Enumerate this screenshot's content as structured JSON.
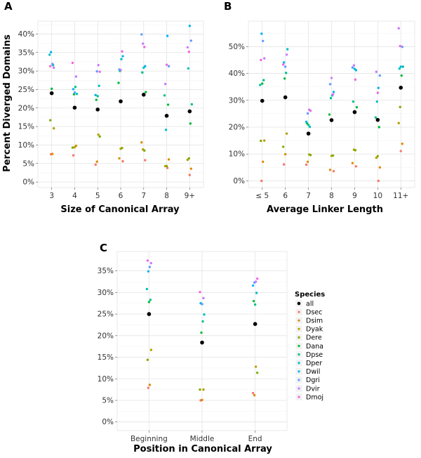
{
  "species": {
    "title": "Species",
    "names": [
      "all",
      "Dsec",
      "Dsim",
      "Dyak",
      "Dere",
      "Dana",
      "Dpse",
      "Dper",
      "Dwil",
      "Dgri",
      "Dvir",
      "Dmoj"
    ],
    "colors": [
      "#000000",
      "#F8766D",
      "#DE8C00",
      "#B79F00",
      "#7CAE00",
      "#00BA38",
      "#00C08B",
      "#00BFC4",
      "#00B4F0",
      "#619CFF",
      "#C77CFF",
      "#F564E3"
    ]
  },
  "chart_data": [
    {
      "type": "scatter",
      "panel": "A",
      "xlabel": "Size of Canonical Array",
      "ylabel": "Percent Diverged Domains",
      "categories": [
        "3",
        "4",
        "5",
        "6",
        "7",
        "8",
        "9+"
      ],
      "ylim": [
        -1.5,
        43.5
      ],
      "yticks": [
        0,
        5,
        10,
        15,
        20,
        25,
        30,
        35,
        40
      ],
      "ytick_labels": [
        "0%",
        "5%",
        "10%",
        "15%",
        "20%",
        "25%",
        "30%",
        "35%",
        "40%"
      ],
      "series": [
        {
          "name": "all",
          "values": [
            24.0,
            20.1,
            19.6,
            21.8,
            23.6,
            17.9,
            19.1
          ]
        },
        {
          "name": "Dsec",
          "values": [
            7.5,
            7.2,
            4.7,
            5.6,
            5.9,
            3.8,
            1.9
          ]
        },
        {
          "name": "Dsim",
          "values": [
            7.6,
            9.4,
            5.5,
            6.4,
            10.7,
            6.1,
            3.6
          ]
        },
        {
          "name": "Dyak",
          "values": [
            14.5,
            9.8,
            12.8,
            9.0,
            8.8,
            4.3,
            6.0
          ]
        },
        {
          "name": "Dere",
          "values": [
            16.7,
            9.3,
            12.3,
            9.2,
            8.5,
            4.3,
            6.4
          ]
        },
        {
          "name": "Dana",
          "values": [
            25.2,
            23.7,
            22.2,
            26.8,
            24.3,
            20.9,
            15.8
          ]
        },
        {
          "name": "Dpse",
          "values": [
            31.6,
            25.7,
            23.2,
            30.0,
            29.6,
            23.4,
            21.0
          ]
        },
        {
          "name": "Dper",
          "values": [
            34.4,
            23.8,
            26.0,
            33.2,
            30.9,
            14.1,
            30.7
          ]
        },
        {
          "name": "Dwil",
          "values": [
            35.1,
            25.1,
            23.5,
            34.0,
            31.3,
            39.5,
            42.2
          ]
        },
        {
          "name": "Dgri",
          "values": [
            31.9,
            24.2,
            29.9,
            30.4,
            39.9,
            31.3,
            38.2
          ]
        },
        {
          "name": "Dvir",
          "values": [
            30.9,
            28.5,
            31.6,
            30.3,
            37.4,
            26.5,
            36.4
          ]
        },
        {
          "name": "Dmoj",
          "values": [
            31.3,
            32.2,
            29.8,
            35.3,
            36.5,
            31.7,
            35.2
          ]
        }
      ]
    },
    {
      "type": "scatter",
      "panel": "B",
      "xlabel": "Average Linker Length",
      "ylabel": "",
      "categories": [
        "≤ 5",
        "6",
        "7",
        "8",
        "9",
        "10",
        "11+"
      ],
      "ylim": [
        -2.5,
        59.5
      ],
      "yticks": [
        0,
        10,
        20,
        30,
        40,
        50
      ],
      "ytick_labels": [
        "0%",
        "10%",
        "20%",
        "30%",
        "40%",
        "50%"
      ],
      "series": [
        {
          "name": "all",
          "values": [
            29.8,
            31.1,
            17.6,
            22.6,
            25.6,
            22.7,
            34.7
          ]
        },
        {
          "name": "Dsec",
          "values": [
            0.0,
            6.1,
            6.0,
            3.6,
            5.4,
            0.0,
            11.1
          ]
        },
        {
          "name": "Dsim",
          "values": [
            7.1,
            9.9,
            7.1,
            4.1,
            6.6,
            5.0,
            13.8
          ]
        },
        {
          "name": "Dyak",
          "values": [
            15.0,
            17.6,
            9.8,
            9.3,
            11.6,
            8.6,
            21.5
          ]
        },
        {
          "name": "Dere",
          "values": [
            14.9,
            12.7,
            9.6,
            9.4,
            11.4,
            9.2,
            27.5
          ]
        },
        {
          "name": "Dana",
          "values": [
            36.2,
            38.1,
            21.4,
            24.7,
            27.4,
            20.0,
            39.2
          ]
        },
        {
          "name": "Dpse",
          "values": [
            37.5,
            40.2,
            20.8,
            30.8,
            29.5,
            23.6,
            42.5
          ]
        },
        {
          "name": "Dper",
          "values": [
            35.7,
            49.0,
            20.1,
            31.8,
            41.7,
            29.5,
            41.8
          ]
        },
        {
          "name": "Dwil",
          "values": [
            54.8,
            44.1,
            22.0,
            33.1,
            41.2,
            34.6,
            42.5
          ]
        },
        {
          "name": "Dgri",
          "values": [
            52.1,
            42.5,
            25.1,
            36.0,
            42.2,
            39.2,
            49.9
          ]
        },
        {
          "name": "Dvir",
          "values": [
            45.6,
            47.0,
            26.5,
            38.3,
            43.0,
            40.6,
            56.8
          ]
        },
        {
          "name": "Dmoj",
          "values": [
            45.0,
            43.3,
            26.1,
            32.2,
            37.7,
            32.8,
            50.2
          ]
        }
      ]
    },
    {
      "type": "scatter",
      "panel": "C",
      "xlabel": "Position in Canonical Array",
      "ylabel": "",
      "categories": [
        "Beginning",
        "Middle",
        "End"
      ],
      "ylim": [
        -2.0,
        39.5
      ],
      "yticks": [
        0,
        5,
        10,
        15,
        20,
        25,
        30,
        35
      ],
      "ytick_labels": [
        "0%",
        "5%",
        "10%",
        "15%",
        "20%",
        "25%",
        "30%",
        "35%"
      ],
      "series": [
        {
          "name": "all",
          "values": [
            25.0,
            18.4,
            22.7
          ]
        },
        {
          "name": "Dsec",
          "values": [
            7.9,
            5.0,
            6.7
          ]
        },
        {
          "name": "Dsim",
          "values": [
            8.6,
            5.1,
            6.2
          ]
        },
        {
          "name": "Dyak",
          "values": [
            16.7,
            7.5,
            12.8
          ]
        },
        {
          "name": "Dere",
          "values": [
            14.4,
            7.5,
            11.4
          ]
        },
        {
          "name": "Dana",
          "values": [
            27.8,
            20.7,
            28.0
          ]
        },
        {
          "name": "Dpse",
          "values": [
            28.3,
            23.3,
            27.2
          ]
        },
        {
          "name": "Dper",
          "values": [
            30.8,
            24.9,
            29.9
          ]
        },
        {
          "name": "Dwil",
          "values": [
            34.9,
            27.5,
            31.6
          ]
        },
        {
          "name": "Dgri",
          "values": [
            35.9,
            27.3,
            32.3
          ]
        },
        {
          "name": "Dvir",
          "values": [
            36.8,
            28.7,
            32.5
          ]
        },
        {
          "name": "Dmoj",
          "values": [
            37.4,
            30.1,
            33.2
          ]
        }
      ]
    }
  ]
}
